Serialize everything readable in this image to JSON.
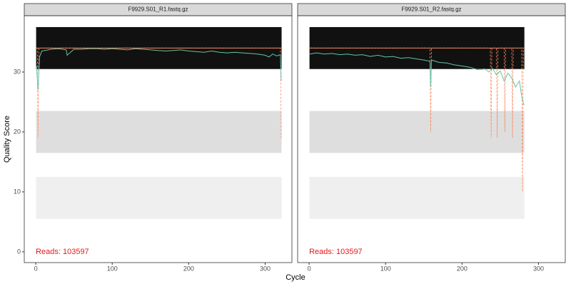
{
  "chart_data": {
    "type": "line",
    "x_label": "Cycle",
    "y_label": "Quality Score",
    "xlim": [
      -15,
      335
    ],
    "ylim": [
      -1.8,
      39.4
    ],
    "xticks": [
      0,
      100,
      200,
      300
    ],
    "yticks": [
      0,
      10,
      20,
      30
    ],
    "grid": false,
    "band_scores": [
      34,
      20,
      9
    ],
    "band_colors": [
      "#111111",
      "#dedede",
      "#efefef"
    ],
    "mean_color": "#66c2a5",
    "quartile_color": "#fc8d62",
    "facets": [
      {
        "title": "F9929.S01_R1.fastq.gz",
        "annotation": "Reads:  103597",
        "cycles": [
          1,
          321
        ],
        "mean": {
          "x": [
            1,
            3,
            5,
            8,
            12,
            20,
            30,
            40,
            41,
            50,
            60,
            70,
            80,
            90,
            100,
            110,
            120,
            130,
            140,
            150,
            160,
            170,
            180,
            190,
            200,
            210,
            220,
            230,
            240,
            250,
            260,
            270,
            280,
            290,
            300,
            305,
            310,
            315,
            320,
            321
          ],
          "values": [
            31,
            27,
            32.5,
            33.5,
            33.6,
            33.8,
            33.9,
            33.7,
            32.8,
            33.8,
            33.8,
            33.9,
            33.9,
            33.8,
            33.9,
            33.8,
            33.7,
            33.9,
            33.8,
            33.7,
            33.6,
            33.5,
            33.6,
            33.7,
            33.5,
            33.4,
            33.3,
            33.5,
            33.3,
            33.2,
            33.3,
            33.2,
            33.1,
            33.0,
            32.8,
            32.5,
            33.0,
            32.7,
            32.9,
            28.5
          ]
        },
        "median": {
          "x": [
            1,
            321
          ],
          "values": [
            34,
            34
          ]
        },
        "q25": {
          "x": [
            1,
            2,
            3,
            4,
            320,
            321
          ],
          "values": [
            34,
            34,
            19,
            34,
            34,
            19
          ]
        }
      },
      {
        "title": "F9929.S01_R2.fastq.gz",
        "annotation": "Reads:  103597",
        "cycles": [
          1,
          281
        ],
        "mean": {
          "x": [
            1,
            10,
            20,
            30,
            40,
            50,
            60,
            70,
            80,
            90,
            100,
            110,
            120,
            130,
            140,
            150,
            158,
            159,
            160,
            170,
            180,
            190,
            200,
            210,
            220,
            230,
            235,
            240,
            245,
            250,
            255,
            260,
            265,
            270,
            275,
            278,
            281
          ],
          "values": [
            33,
            33.2,
            33,
            33.1,
            32.9,
            33,
            32.8,
            32.9,
            32.6,
            32.8,
            32.5,
            32.6,
            32.3,
            32.4,
            32.2,
            32,
            31.8,
            27.5,
            32,
            31.6,
            31.5,
            31.2,
            31,
            30.8,
            30.4,
            30.5,
            30,
            30.6,
            29.5,
            30.2,
            28.5,
            29.8,
            29,
            27.5,
            28.5,
            26,
            24.5
          ]
        },
        "median": {
          "x": [
            1,
            281
          ],
          "values": [
            34,
            34
          ]
        },
        "q25": {
          "x": [
            1,
            158,
            159,
            160,
            237,
            238,
            239,
            245,
            246,
            247,
            255,
            256,
            257,
            265,
            266,
            267,
            275,
            278,
            279,
            280,
            281
          ],
          "values": [
            34,
            34,
            20,
            34,
            34,
            19,
            34,
            34,
            19,
            34,
            34,
            20,
            34,
            34,
            19,
            34,
            34,
            34,
            10,
            34,
            34
          ]
        }
      }
    ]
  }
}
